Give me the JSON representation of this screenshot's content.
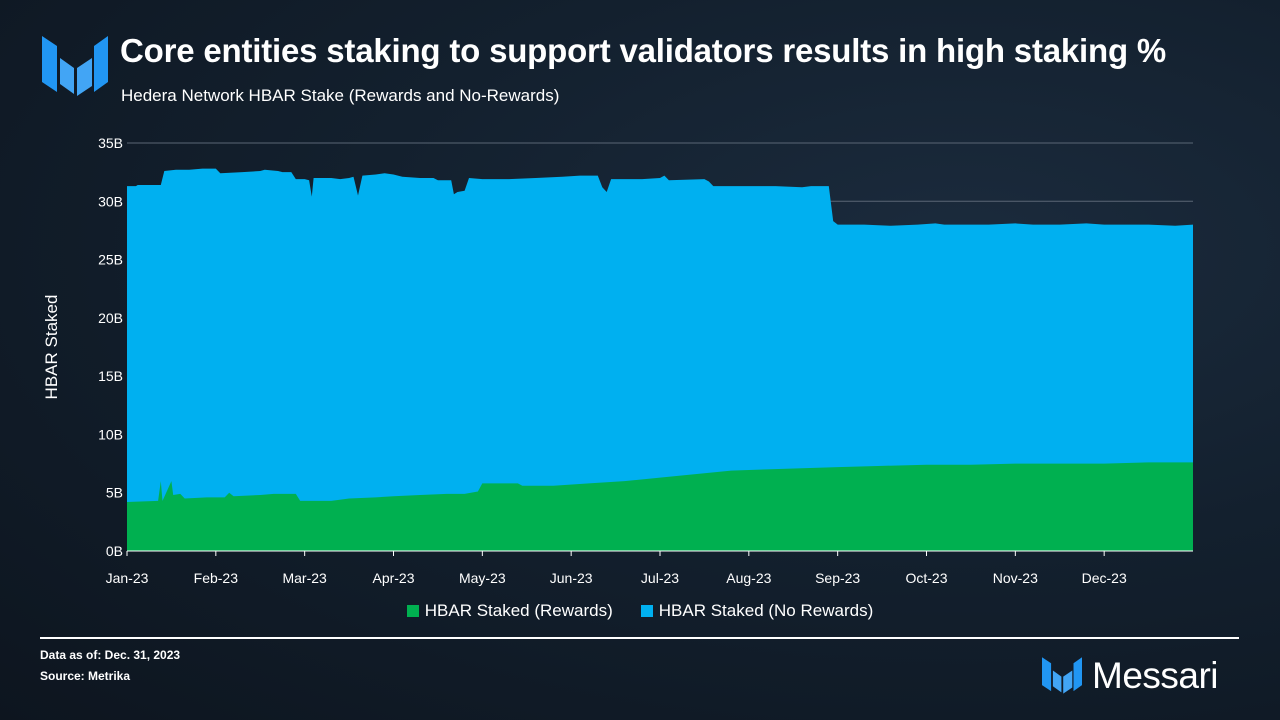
{
  "header": {
    "title": "Core entities staking to support validators results in high staking %",
    "subtitle": "Hedera Network HBAR Stake (Rewards and No-Rewards)"
  },
  "colors": {
    "rewards": "#00b050",
    "no_rewards": "#00b0f0",
    "text": "#ffffff",
    "grid": "#5a6675"
  },
  "chart_data": {
    "type": "area",
    "stacked": true,
    "title": "Hedera Network HBAR Stake (Rewards and No-Rewards)",
    "xlabel": "",
    "ylabel": "HBAR Staked",
    "ylim": [
      0,
      35
    ],
    "yunit": "B",
    "yticks": [
      0,
      5,
      10,
      15,
      20,
      25,
      30,
      35
    ],
    "ytick_labels": [
      "0B",
      "5B",
      "10B",
      "15B",
      "20B",
      "25B",
      "30B",
      "35B"
    ],
    "xlim": [
      0,
      12
    ],
    "month_labels": [
      "Jan-23",
      "Feb-23",
      "Mar-23",
      "Apr-23",
      "May-23",
      "Jun-23",
      "Jul-23",
      "Aug-23",
      "Sep-23",
      "Oct-23",
      "Nov-23",
      "Dec-23"
    ],
    "x_unit": "months since Jan 1, 2023",
    "legend_position": "bottom",
    "series": [
      {
        "name": "HBAR Staked (Rewards)",
        "color": "#00b050",
        "points": [
          [
            0,
            4.2
          ],
          [
            0.4,
            4.3
          ],
          [
            0.4,
            4.3
          ],
          [
            0.35,
            4.3
          ],
          [
            0.38,
            6.0
          ],
          [
            0.5,
            6.0
          ],
          [
            0.52,
            4.8
          ],
          [
            0.6,
            4.9
          ],
          [
            0.65,
            4.5
          ],
          [
            0.9,
            4.6
          ],
          [
            1.1,
            4.6
          ],
          [
            1.15,
            5.0
          ],
          [
            1.2,
            4.7
          ],
          [
            1.5,
            4.8
          ],
          [
            1.65,
            4.9
          ],
          [
            1.9,
            4.9
          ],
          [
            1.95,
            4.3
          ],
          [
            2.3,
            4.3
          ],
          [
            2.5,
            4.5
          ],
          [
            2.8,
            4.6
          ],
          [
            3.0,
            4.7
          ],
          [
            3.3,
            4.8
          ],
          [
            3.6,
            4.9
          ],
          [
            3.8,
            4.9
          ],
          [
            3.95,
            5.1
          ],
          [
            4.0,
            5.8
          ],
          [
            4.4,
            5.8
          ],
          [
            4.45,
            5.6
          ],
          [
            4.8,
            5.6
          ],
          [
            5.2,
            5.8
          ],
          [
            5.6,
            6.0
          ],
          [
            6.0,
            6.3
          ],
          [
            6.4,
            6.6
          ],
          [
            6.8,
            6.9
          ],
          [
            7.2,
            7.0
          ],
          [
            7.6,
            7.1
          ],
          [
            8.0,
            7.2
          ],
          [
            8.5,
            7.3
          ],
          [
            9.0,
            7.4
          ],
          [
            9.5,
            7.4
          ],
          [
            10.0,
            7.5
          ],
          [
            10.5,
            7.5
          ],
          [
            11.0,
            7.5
          ],
          [
            11.5,
            7.6
          ],
          [
            12.0,
            7.6
          ]
        ]
      },
      {
        "name": "HBAR Staked (No Rewards)",
        "color": "#00b0f0",
        "totals": [
          [
            0,
            31.3
          ],
          [
            0.1,
            31.3
          ],
          [
            0.12,
            31.4
          ],
          [
            0.38,
            31.4
          ],
          [
            0.42,
            32.6
          ],
          [
            0.55,
            32.7
          ],
          [
            0.7,
            32.7
          ],
          [
            0.85,
            32.8
          ],
          [
            1.0,
            32.8
          ],
          [
            1.05,
            32.4
          ],
          [
            1.3,
            32.5
          ],
          [
            1.5,
            32.6
          ],
          [
            1.55,
            32.7
          ],
          [
            1.7,
            32.6
          ],
          [
            1.75,
            32.5
          ],
          [
            1.85,
            32.5
          ],
          [
            1.9,
            31.9
          ],
          [
            2.0,
            31.9
          ],
          [
            2.05,
            31.8
          ],
          [
            2.08,
            30.4
          ],
          [
            2.1,
            32.0
          ],
          [
            2.3,
            32.0
          ],
          [
            2.4,
            31.9
          ],
          [
            2.5,
            32.0
          ],
          [
            2.55,
            32.1
          ],
          [
            2.6,
            30.5
          ],
          [
            2.65,
            32.2
          ],
          [
            2.8,
            32.3
          ],
          [
            2.9,
            32.4
          ],
          [
            3.0,
            32.3
          ],
          [
            3.05,
            32.2
          ],
          [
            3.1,
            32.1
          ],
          [
            3.3,
            32.0
          ],
          [
            3.45,
            32.0
          ],
          [
            3.5,
            31.8
          ],
          [
            3.65,
            31.8
          ],
          [
            3.68,
            30.6
          ],
          [
            3.72,
            30.8
          ],
          [
            3.8,
            30.9
          ],
          [
            3.85,
            32.0
          ],
          [
            4.0,
            31.9
          ],
          [
            4.3,
            31.9
          ],
          [
            4.6,
            32.0
          ],
          [
            4.9,
            32.1
          ],
          [
            5.1,
            32.2
          ],
          [
            5.3,
            32.2
          ],
          [
            5.35,
            31.2
          ],
          [
            5.4,
            30.8
          ],
          [
            5.45,
            31.9
          ],
          [
            5.8,
            31.9
          ],
          [
            6.0,
            32.0
          ],
          [
            6.05,
            32.2
          ],
          [
            6.1,
            31.8
          ],
          [
            6.5,
            31.9
          ],
          [
            6.55,
            31.7
          ],
          [
            6.6,
            31.3
          ],
          [
            7.0,
            31.3
          ],
          [
            7.3,
            31.3
          ],
          [
            7.6,
            31.2
          ],
          [
            7.7,
            31.3
          ],
          [
            7.9,
            31.3
          ],
          [
            7.95,
            28.3
          ],
          [
            8.0,
            28.0
          ],
          [
            8.3,
            28.0
          ],
          [
            8.6,
            27.9
          ],
          [
            8.9,
            28.0
          ],
          [
            9.1,
            28.1
          ],
          [
            9.2,
            28.0
          ],
          [
            9.7,
            28.0
          ],
          [
            10.0,
            28.1
          ],
          [
            10.2,
            28.0
          ],
          [
            10.5,
            28.0
          ],
          [
            10.8,
            28.1
          ],
          [
            11.0,
            28.0
          ],
          [
            11.5,
            28.0
          ],
          [
            11.8,
            27.9
          ],
          [
            12.0,
            28.0
          ]
        ]
      }
    ]
  },
  "legend": [
    {
      "label": "HBAR Staked (Rewards)",
      "color": "#00b050"
    },
    {
      "label": "HBAR Staked (No Rewards)",
      "color": "#00b0f0"
    }
  ],
  "footer": {
    "data_as_of": "Data as of: Dec. 31, 2023",
    "source": "Source: Metrika",
    "brand": "Messari"
  }
}
